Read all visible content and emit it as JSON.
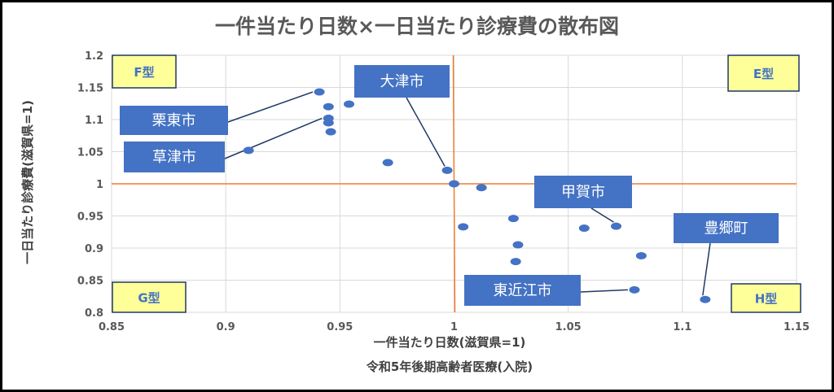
{
  "chart_data": {
    "type": "scatter",
    "title": "一件当たり日数×一日当たり診療費の散布図",
    "xlabel": "一件当たり日数(滋賀県=1)",
    "xlabel2": "令和5年後期高齢者医療(入院)",
    "ylabel": "一日当たり診療費(滋賀県=1)",
    "xlim": [
      0.85,
      1.15
    ],
    "ylim": [
      0.8,
      1.2
    ],
    "x_ticks": [
      0.85,
      0.9,
      0.95,
      1,
      1.05,
      1.1,
      1.15
    ],
    "y_ticks": [
      0.8,
      0.85,
      0.9,
      0.95,
      1,
      1.05,
      1.1,
      1.15,
      1.2
    ],
    "x_tick_labels": [
      "0.85",
      "0.9",
      "0.95",
      "1",
      "1.05",
      "1.1",
      "1.15"
    ],
    "y_tick_labels": [
      "0.8",
      "0.85",
      "0.9",
      "0.95",
      "1",
      "1.05",
      "1.1",
      "1.15",
      "1.2"
    ],
    "grid": true,
    "reference_lines": {
      "x": 1,
      "y": 1
    },
    "colors": {
      "points": "#4472c4",
      "reference": "#ed7d31",
      "grid": "#d9d9d9",
      "callout_fill": "#4472c4",
      "quadrant_fill": "#ffff99"
    },
    "points": [
      {
        "x": 0.91,
        "y": 1.052
      },
      {
        "x": 0.941,
        "y": 1.143
      },
      {
        "x": 0.945,
        "y": 1.12
      },
      {
        "x": 0.945,
        "y": 1.102
      },
      {
        "x": 0.945,
        "y": 1.095
      },
      {
        "x": 0.946,
        "y": 1.081
      },
      {
        "x": 0.954,
        "y": 1.124
      },
      {
        "x": 0.971,
        "y": 1.033
      },
      {
        "x": 0.997,
        "y": 1.021
      },
      {
        "x": 1.0,
        "y": 1.0
      },
      {
        "x": 1.004,
        "y": 0.933
      },
      {
        "x": 1.012,
        "y": 0.994
      },
      {
        "x": 1.026,
        "y": 0.946
      },
      {
        "x": 1.028,
        "y": 0.905
      },
      {
        "x": 1.027,
        "y": 0.879
      },
      {
        "x": 1.057,
        "y": 0.931
      },
      {
        "x": 1.071,
        "y": 0.934
      },
      {
        "x": 1.079,
        "y": 0.835
      },
      {
        "x": 1.082,
        "y": 0.888
      },
      {
        "x": 1.11,
        "y": 0.82
      }
    ],
    "callouts": [
      {
        "name": "callout-ritto",
        "text": "栗東市",
        "point": {
          "x": 0.941,
          "y": 1.143
        }
      },
      {
        "name": "callout-kusatsu",
        "text": "草津市",
        "point": {
          "x": 0.945,
          "y": 1.102
        }
      },
      {
        "name": "callout-otsu",
        "text": "大津市",
        "point": {
          "x": 0.997,
          "y": 1.021
        }
      },
      {
        "name": "callout-koka",
        "text": "甲賀市",
        "point": {
          "x": 1.071,
          "y": 0.934
        }
      },
      {
        "name": "callout-toyosato",
        "text": "豊郷町",
        "point": {
          "x": 1.11,
          "y": 0.82
        }
      },
      {
        "name": "callout-higashiomi",
        "text": "東近江市",
        "point": {
          "x": 1.079,
          "y": 0.835
        }
      }
    ],
    "quadrants": [
      {
        "name": "quadrant-f",
        "text": "F型"
      },
      {
        "name": "quadrant-e",
        "text": "E型"
      },
      {
        "name": "quadrant-g",
        "text": "G型"
      },
      {
        "name": "quadrant-h",
        "text": "H型"
      }
    ]
  }
}
